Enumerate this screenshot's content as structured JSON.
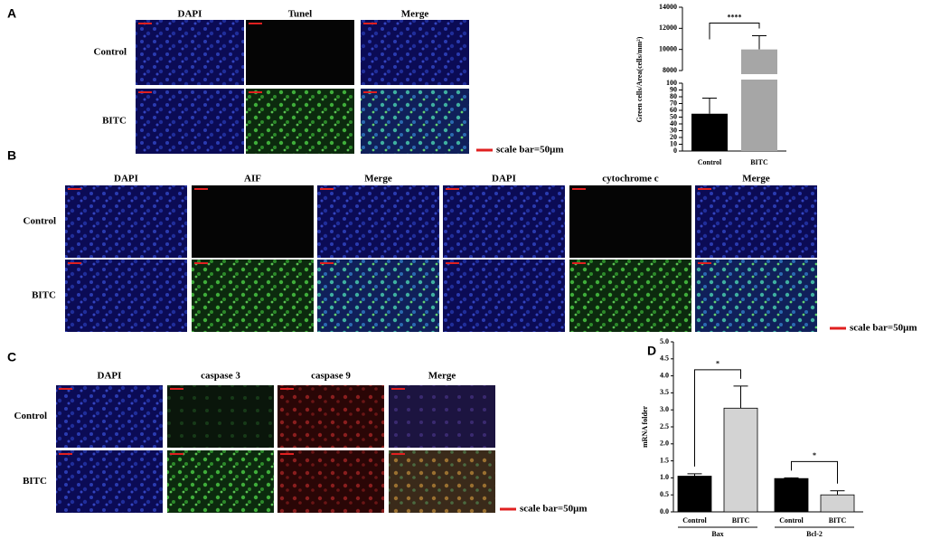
{
  "panels": [
    {
      "label": "A",
      "columns": [
        "DAPI",
        "Tunel",
        "Merge"
      ],
      "rows": [
        "Control",
        "BITC"
      ],
      "scale_bar": "scale bar=50μm"
    },
    {
      "label": "B",
      "columns": [
        "DAPI",
        "AIF",
        "Merge",
        "DAPI",
        "cytochrome c",
        "Merge"
      ],
      "rows": [
        "Control",
        "BITC"
      ],
      "scale_bar": "scale bar=50μm"
    },
    {
      "label": "C",
      "columns": [
        "DAPI",
        "caspase 3",
        "caspase 9",
        "Merge"
      ],
      "rows": [
        "Control",
        "BITC"
      ],
      "scale_bar": "scale bar=50μm"
    }
  ],
  "chart_data": [
    {
      "type": "broken_bar",
      "y_label": "Green cells/Area(cells/mm²)",
      "categories": [
        "Control",
        "BITC"
      ],
      "values": [
        55,
        10000
      ],
      "errors": [
        23,
        1300
      ],
      "colors": [
        "#000000",
        "#a6a6a6"
      ],
      "ylim": [
        0,
        14000
      ],
      "axis_break": [
        100,
        8000
      ],
      "yticks": [
        0,
        10,
        20,
        30,
        40,
        50,
        60,
        70,
        80,
        90,
        100,
        8000,
        10000,
        12000,
        14000
      ],
      "significance": "****"
    },
    {
      "type": "grouped_bar",
      "panel_label": "D",
      "y_label": "mRNA folder",
      "groups": [
        {
          "name": "Bax",
          "categories": [
            "Control",
            "BITC"
          ],
          "values": [
            1.05,
            3.05
          ],
          "errors": [
            0.07,
            0.65
          ],
          "significance": "*"
        },
        {
          "name": "Bcl-2",
          "categories": [
            "Control",
            "BITC"
          ],
          "values": [
            0.98,
            0.5
          ],
          "errors": [
            0.02,
            0.12
          ],
          "significance": "*"
        }
      ],
      "colors": [
        "#000000",
        "#d3d3d3"
      ],
      "ylim": [
        0,
        5
      ],
      "yticks": [
        {
          "value": 0,
          "label": "0.0"
        },
        {
          "value": 0.5,
          "label": "0.5"
        },
        {
          "value": 1,
          "label": "1.0"
        },
        {
          "value": 1.5,
          "label": "1.5"
        },
        {
          "value": 2,
          "label": "2.0"
        },
        {
          "value": 2.5,
          "label": "2.5"
        },
        {
          "value": 3,
          "label": "3.0"
        },
        {
          "value": 3.5,
          "label": "3.5"
        },
        {
          "value": 4,
          "label": "4.0"
        },
        {
          "value": 4.5,
          "label": "4.5"
        },
        {
          "value": 5,
          "label": "5.0"
        }
      ]
    }
  ]
}
